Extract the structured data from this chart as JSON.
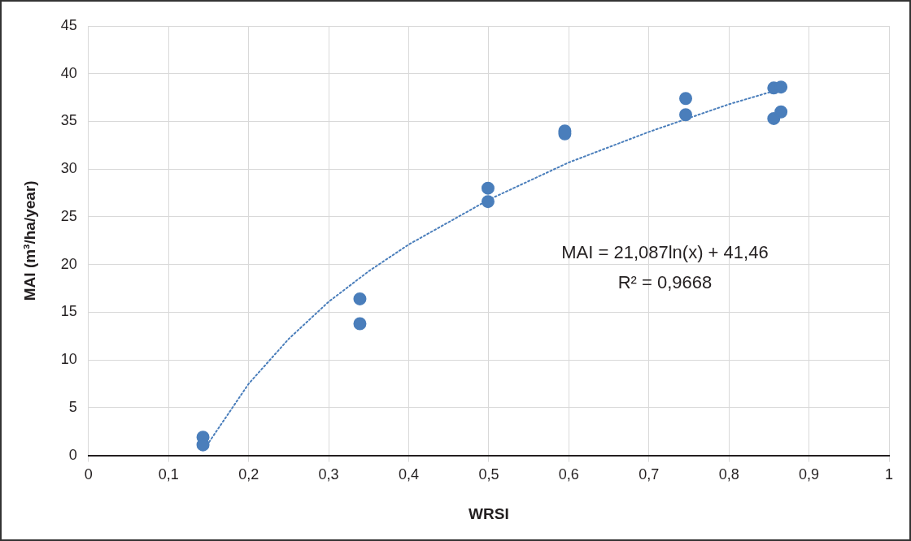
{
  "chart_data": {
    "type": "scatter",
    "xlabel": "WRSI",
    "ylabel": "MAI (m³/ha/year)",
    "xlim": [
      0,
      1
    ],
    "xticks": [
      0,
      {
        "value": 0.1,
        "label": "0,1"
      },
      {
        "value": 0.2,
        "label": "0,2"
      },
      {
        "value": 0.3,
        "label": "0,3"
      },
      {
        "value": 0.4,
        "label": "0,4"
      },
      {
        "value": 0.5,
        "label": "0,5"
      },
      {
        "value": 0.6,
        "label": "0,6"
      },
      {
        "value": 0.7,
        "label": "0,7"
      },
      {
        "value": 0.8,
        "label": "0,8"
      },
      {
        "value": 0.9,
        "label": "0,9"
      },
      1
    ],
    "ylim": [
      0,
      45
    ],
    "yticks": [
      0,
      5,
      10,
      15,
      20,
      25,
      30,
      35,
      40,
      45
    ],
    "grid": true,
    "legend": false,
    "marker": "circle",
    "series": [
      {
        "type": "scatter",
        "color": "#4a7ebb",
        "x": [
          0.143,
          0.143,
          0.339,
          0.339,
          0.499,
          0.499,
          0.595,
          0.595,
          0.746,
          0.746,
          0.856,
          0.865,
          0.856,
          0.865
        ],
        "values": [
          1.9,
          1.1,
          16.4,
          13.8,
          28.0,
          26.6,
          34.0,
          33.7,
          37.4,
          35.7,
          38.5,
          38.6,
          35.3,
          36.0
        ]
      },
      {
        "type": "line",
        "color": "#4a7ebb",
        "marker": "none",
        "line_style": "dotted",
        "x": [
          0.145,
          0.2,
          0.25,
          0.3,
          0.35,
          0.4,
          0.5,
          0.6,
          0.7,
          0.8,
          0.865
        ],
        "values": [
          0.7,
          7.5,
          12.2,
          16.1,
          19.3,
          22.1,
          26.8,
          30.7,
          33.9,
          36.8,
          38.4
        ]
      }
    ],
    "annotations": [
      "MAI = 21,087ln(x) + 41,46",
      "R² = 0,9668"
    ]
  }
}
